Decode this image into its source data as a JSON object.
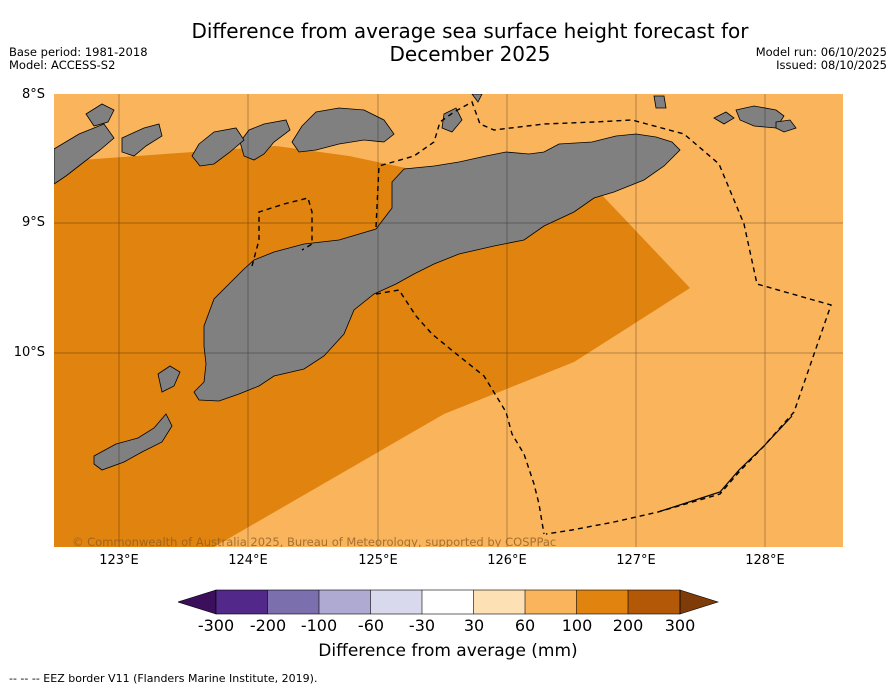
{
  "title_line1": "Difference from average sea surface height forecast for",
  "title_line2": "December 2025",
  "base_period": "Base period: 1981-2018",
  "model": "Model: ACCESS-S2",
  "model_run": "Model run: 06/10/2025",
  "issued": "Issued: 08/10/2025",
  "copyright": "© Commonwealth of Australia 2025, Bureau of Meteorology, supported by COSPPac",
  "lat_labels": [
    "8°S",
    "9°S",
    "10°S"
  ],
  "lon_labels": [
    "123°E",
    "124°E",
    "125°E",
    "126°E",
    "127°E",
    "128°E"
  ],
  "colorbar": {
    "title": "Difference from average (mm)",
    "ticks": [
      "-300",
      "-200",
      "-100",
      "-60",
      "-30",
      "30",
      "60",
      "100",
      "200",
      "300"
    ],
    "colors": [
      "#3b0f5c",
      "#52288a",
      "#7b70ad",
      "#aeaad2",
      "#d8d9ec",
      "#ffffff",
      "#fde0b3",
      "#f9b45c",
      "#e0830f",
      "#b35806",
      "#7f3b08"
    ]
  },
  "legend_footnote": "--  --  -- EEZ border V11 (Flanders Marine Institute, 2019).",
  "map_regions": {
    "high_anomaly_color": "#e0830f",
    "moderate_anomaly_color": "#f9b45c",
    "land_color": "#808080"
  }
}
